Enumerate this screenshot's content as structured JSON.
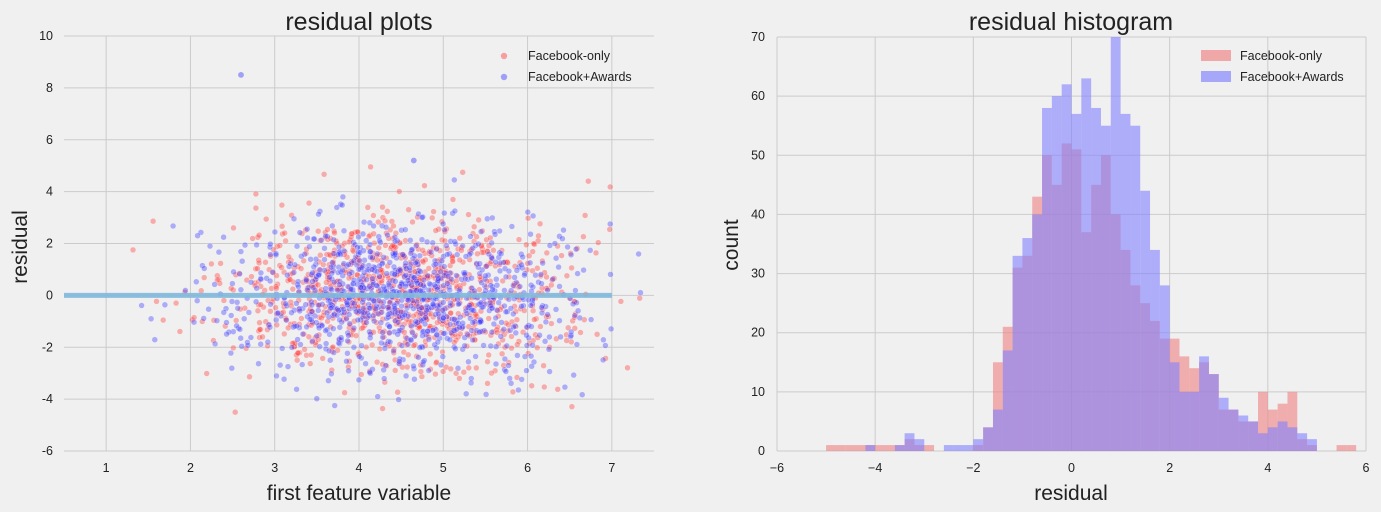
{
  "chart_data": [
    {
      "type": "scatter",
      "title": "residual plots",
      "xlabel": "first feature variable",
      "ylabel": "residual",
      "xlim": [
        0.5,
        7.5
      ],
      "ylim": [
        -6,
        10
      ],
      "xticks": [
        1,
        2,
        3,
        4,
        5,
        6,
        7
      ],
      "yticks": [
        -6,
        -4,
        -2,
        0,
        2,
        4,
        6,
        8,
        10
      ],
      "grid": true,
      "legend_position": "top-right",
      "reference_line": {
        "y": 0,
        "x": [
          0.5,
          7.0
        ],
        "color": "#7fb8dc"
      },
      "series": [
        {
          "name": "Facebook-only",
          "color": "#ff3b3b",
          "n_points": 1000,
          "center_x": 4.5,
          "spread_x": 1.0,
          "spread_y": 1.5
        },
        {
          "name": "Facebook+Awards",
          "color": "#3b3bff",
          "n_points": 1000,
          "center_x": 4.5,
          "spread_x": 1.0,
          "spread_y": 1.5
        }
      ]
    },
    {
      "type": "bar",
      "subtype": "histogram",
      "title": "residual histogram",
      "xlabel": "residual",
      "ylabel": "count",
      "xlim": [
        -6,
        6
      ],
      "ylim": [
        0,
        70
      ],
      "xticks": [
        -6,
        -4,
        -2,
        0,
        2,
        4,
        6
      ],
      "yticks": [
        0,
        10,
        20,
        30,
        40,
        50,
        60,
        70
      ],
      "grid": true,
      "legend_position": "top-right",
      "bin_start": -5.0,
      "bin_width": 0.2,
      "series": [
        {
          "name": "Facebook-only",
          "color": "#f08080",
          "counts": [
            1,
            1,
            1,
            1,
            1,
            1,
            1,
            1,
            2,
            1,
            1,
            0,
            0,
            0,
            0,
            1,
            4,
            15,
            21,
            31,
            33,
            43,
            50,
            45,
            52,
            51,
            37,
            45,
            50,
            40,
            34,
            28,
            25,
            22,
            19,
            19,
            16,
            14,
            15,
            13,
            7,
            7,
            5,
            5,
            10,
            7,
            8,
            10,
            2,
            1,
            0,
            0,
            1,
            1,
            0,
            0,
            0,
            1,
            1,
            0
          ]
        },
        {
          "name": "Facebook+Awards",
          "color": "#8080ff",
          "counts": [
            0,
            0,
            0,
            0,
            1,
            0,
            0,
            1,
            3,
            2,
            0,
            0,
            1,
            1,
            1,
            2,
            4,
            7,
            17,
            33,
            36,
            40,
            58,
            60,
            62,
            57,
            63,
            58,
            55,
            70,
            57,
            55,
            44,
            34,
            28,
            15,
            10,
            10,
            16,
            13,
            9,
            7,
            6,
            5,
            3,
            4,
            5,
            4,
            3,
            2,
            0,
            0,
            0,
            0,
            0,
            0,
            0,
            0,
            1,
            1
          ]
        }
      ]
    }
  ]
}
